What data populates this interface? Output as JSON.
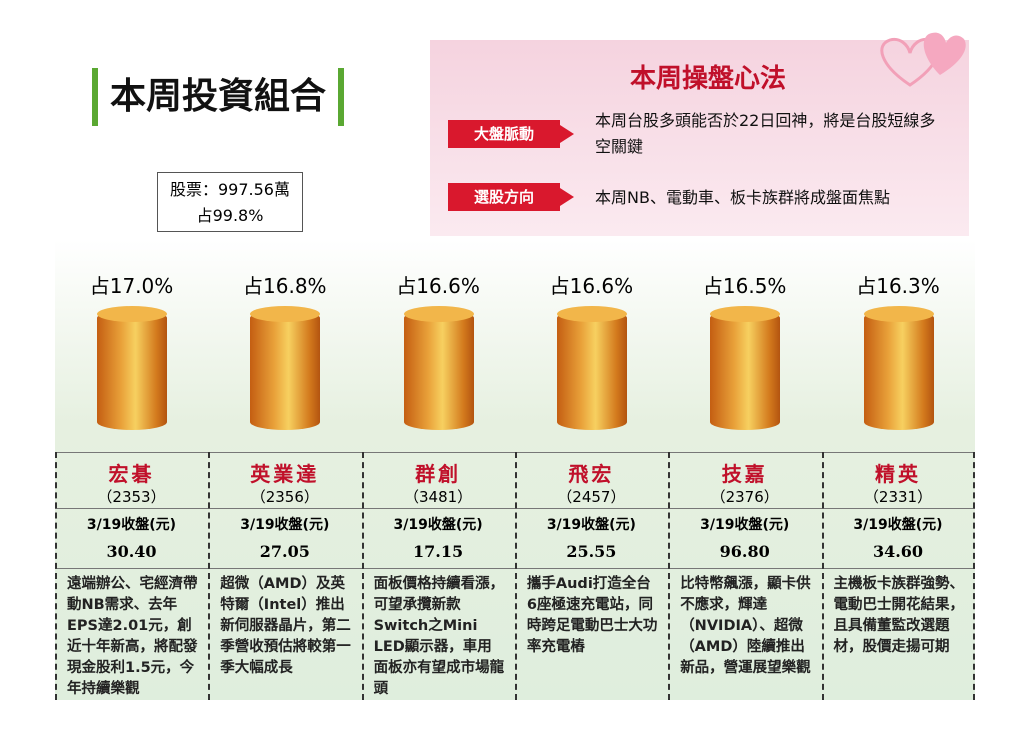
{
  "header": {
    "title": "本周投資組合",
    "stock_total": "股票：997.56萬",
    "stock_share": "占99.8%"
  },
  "strategy": {
    "title": "本周操盤心法",
    "items": [
      {
        "label": "大盤脈動",
        "text": "本周台股多頭能否於22日回神，將是台股短線多空關鍵"
      },
      {
        "label": "選股方向",
        "text": "本周NB、電動車、板卡族群將成盤面焦點"
      }
    ]
  },
  "stocks": [
    {
      "share": "占17.0%",
      "name": "宏碁",
      "code": "（2353）",
      "price_label": "3/19收盤(元)",
      "price": "30.40",
      "desc": "遠端辦公、宅經濟帶動NB需求、去年EPS達2.01元，創近十年新高，將配發現金股利1.5元，今年持續樂觀"
    },
    {
      "share": "占16.8%",
      "name": "英業達",
      "code": "（2356）",
      "price_label": "3/19收盤(元)",
      "price": "27.05",
      "desc": "超微（AMD）及英特爾（Intel）推出新伺服器晶片，第二季營收預估將較第一季大幅成長"
    },
    {
      "share": "占16.6%",
      "name": "群創",
      "code": "（3481）",
      "price_label": "3/19收盤(元)",
      "price": "17.15",
      "desc": "面板價格持續看漲，可望承攬新款Switch之Mini LED顯示器，車用面板亦有望成市場龍頭"
    },
    {
      "share": "占16.6%",
      "name": "飛宏",
      "code": "（2457）",
      "price_label": "3/19收盤(元)",
      "price": "25.55",
      "desc": "攜手Audi打造全台6座極速充電站，同時跨足電動巴士大功率充電樁"
    },
    {
      "share": "占16.5%",
      "name": "技嘉",
      "code": "（2376）",
      "price_label": "3/19收盤(元)",
      "price": "96.80",
      "desc": "比特幣飆漲，顯卡供不應求，輝達（NVIDIA）、超微（AMD）陸續推出新品，營運展望樂觀"
    },
    {
      "share": "占16.3%",
      "name": "精英",
      "code": "（2331）",
      "price_label": "3/19收盤(元)",
      "price": "34.60",
      "desc": "主機板卡族群強勢、電動巴士開花結果，且具備董監改選題材，股價走揚可期"
    }
  ]
}
